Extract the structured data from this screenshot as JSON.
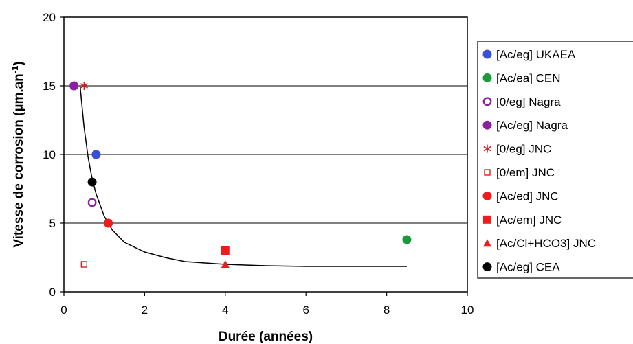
{
  "chart_data": {
    "type": "scatter",
    "xlabel": "Durée (années)",
    "ylabel": "Vitesse de corrosion (µm.an-1)",
    "ylabel_main": "Vitesse de corrosion (µm.an",
    "ylabel_sup": "-1",
    "ylabel_close": ")",
    "xlim": [
      0,
      10
    ],
    "ylim": [
      0,
      20
    ],
    "x_ticks": [
      0,
      2,
      4,
      6,
      8,
      10
    ],
    "y_ticks": [
      0,
      5,
      10,
      15,
      20
    ],
    "grid": "horizontal major gridlines",
    "legend_position": "right",
    "series": [
      {
        "name": "[Ac/eg] UKAEA",
        "marker": "circle",
        "filled": true,
        "color": "#3a4fd8",
        "points": [
          [
            0.8,
            10
          ]
        ]
      },
      {
        "name": "[Ac/ea] CEN",
        "marker": "circle",
        "filled": true,
        "color": "#1a9a3a",
        "points": [
          [
            8.5,
            3.8
          ]
        ]
      },
      {
        "name": "[0/eg] Nagra",
        "marker": "circle",
        "filled": false,
        "color": "#8a1fa0",
        "points": [
          [
            0.7,
            6.5
          ]
        ]
      },
      {
        "name": "[Ac/eg] Nagra",
        "marker": "circle",
        "filled": true,
        "color": "#8a1fa0",
        "points": [
          [
            0.25,
            15
          ]
        ]
      },
      {
        "name": "[0/eg] JNC",
        "marker": "asterisk",
        "filled": false,
        "color": "#d62020",
        "points": [
          [
            0.5,
            15
          ]
        ]
      },
      {
        "name": "[0/em] JNC",
        "marker": "square",
        "filled": false,
        "color": "#d62020",
        "points": [
          [
            0.5,
            2
          ]
        ]
      },
      {
        "name": "[Ac/ed] JNC",
        "marker": "circle",
        "filled": true,
        "color": "#ee1c1c",
        "points": [
          [
            1.1,
            5
          ]
        ]
      },
      {
        "name": "[Ac/em] JNC",
        "marker": "square",
        "filled": true,
        "color": "#ee1c1c",
        "points": [
          [
            4,
            3
          ]
        ]
      },
      {
        "name": "[Ac/Cl+HCO3] JNC",
        "marker": "triangle",
        "filled": true,
        "color": "#ee1c1c",
        "points": [
          [
            4,
            2
          ]
        ]
      },
      {
        "name": "[Ac/eg] CEA",
        "marker": "circle",
        "filled": true,
        "color": "#000000",
        "points": [
          [
            0.7,
            8
          ]
        ]
      }
    ],
    "trend_curve": {
      "color": "#000000",
      "points": [
        [
          0.4,
          15
        ],
        [
          0.5,
          12
        ],
        [
          0.6,
          9.8
        ],
        [
          0.7,
          8.2
        ],
        [
          0.8,
          7.1
        ],
        [
          1.0,
          5.5
        ],
        [
          1.2,
          4.5
        ],
        [
          1.5,
          3.6
        ],
        [
          2.0,
          2.9
        ],
        [
          2.5,
          2.5
        ],
        [
          3.0,
          2.2
        ],
        [
          4.0,
          2.0
        ],
        [
          5.0,
          1.9
        ],
        [
          6.0,
          1.85
        ],
        [
          7.0,
          1.85
        ],
        [
          8.0,
          1.85
        ],
        [
          8.5,
          1.85
        ]
      ]
    }
  }
}
